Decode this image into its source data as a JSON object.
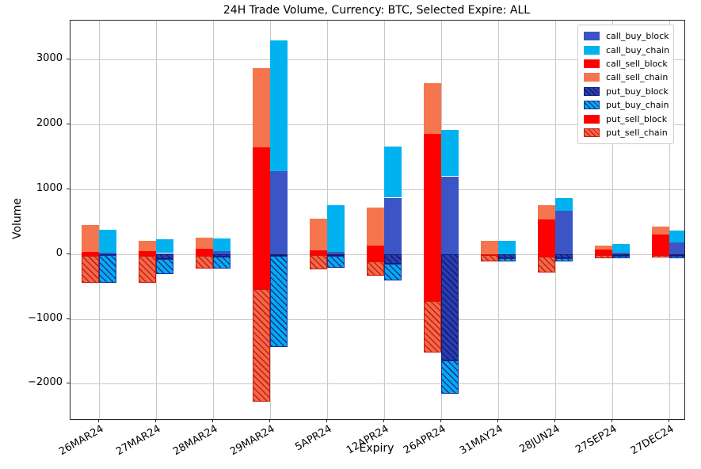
{
  "figure": {
    "background": "#ffffff",
    "grid_color": "#c9c9c9",
    "spine_color": "#262626"
  },
  "chart_data": {
    "type": "bar",
    "subtype": "grouped-stacked, two bars per category (sell-side left, buy-side right), positive = calls, negative = puts",
    "title": "24H Trade Volume, Currency: BTC, Selected Expire: ALL",
    "xlabel": "Expiry",
    "ylabel": "Volume",
    "ylim": [
      -2545,
      3600
    ],
    "yticks": [
      3000,
      2000,
      1000,
      0,
      -1000,
      -2000
    ],
    "grid": true,
    "legend_position": "upper right",
    "categories": [
      "26MAR24",
      "27MAR24",
      "28MAR24",
      "29MAR24",
      "5APR24",
      "12APR24",
      "26APR24",
      "31MAY24",
      "28JUN24",
      "27SEP24",
      "27DEC24"
    ],
    "series": [
      {
        "name": "call_buy_block",
        "stack": "buy",
        "color": "#3B55C7",
        "hatch": false,
        "hatch_color": null,
        "values": [
          20,
          15,
          40,
          1280,
          35,
          870,
          1200,
          0,
          665,
          20,
          175
        ]
      },
      {
        "name": "call_buy_chain",
        "stack": "buy",
        "color": "#00B3F0",
        "hatch": false,
        "hatch_color": null,
        "values": [
          350,
          210,
          200,
          2020,
          720,
          790,
          720,
          205,
          205,
          135,
          190
        ]
      },
      {
        "name": "call_sell_block",
        "stack": "sell",
        "color": "#FE0000",
        "hatch": false,
        "hatch_color": null,
        "values": [
          30,
          50,
          80,
          1650,
          55,
          130,
          1850,
          0,
          540,
          70,
          300
        ]
      },
      {
        "name": "call_sell_chain",
        "stack": "sell",
        "color": "#F5764E",
        "hatch": false,
        "hatch_color": null,
        "values": [
          420,
          150,
          170,
          1220,
          490,
          590,
          780,
          210,
          220,
          55,
          120
        ]
      },
      {
        "name": "put_buy_block",
        "stack": "buy",
        "color": "#2B3DB2",
        "hatch": true,
        "hatch_color": "#101C6E",
        "values": [
          -20,
          -80,
          -35,
          -30,
          -30,
          -150,
          -1640,
          -60,
          -60,
          -30,
          -30
        ]
      },
      {
        "name": "put_buy_chain",
        "stack": "buy",
        "color": "#00AEEE",
        "hatch": true,
        "hatch_color": "#1D2F9B",
        "values": [
          -420,
          -225,
          -190,
          -1400,
          -180,
          -250,
          -520,
          -55,
          -50,
          -30,
          -30
        ]
      },
      {
        "name": "put_sell_block",
        "stack": "sell",
        "color": "#FE0000",
        "hatch": false,
        "hatch_color": null,
        "values": [
          -30,
          -25,
          -30,
          -540,
          -15,
          -110,
          -730,
          -15,
          -40,
          -10,
          -15
        ]
      },
      {
        "name": "put_sell_chain",
        "stack": "sell",
        "color": "#F2684A",
        "hatch": true,
        "hatch_color": "#C81E0E",
        "values": [
          -420,
          -425,
          -195,
          -1740,
          -220,
          -230,
          -790,
          -100,
          -245,
          -50,
          -40
        ]
      }
    ]
  }
}
